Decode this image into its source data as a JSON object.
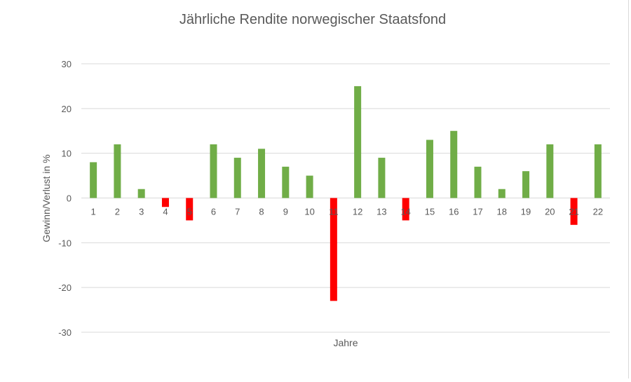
{
  "chart_data": {
    "type": "bar",
    "title": "Jährliche Rendite norwegischer Staatsfond",
    "xlabel": "Jahre",
    "ylabel": "Gewinn/Verlust in %",
    "categories": [
      "1",
      "2",
      "3",
      "4",
      "5",
      "6",
      "7",
      "8",
      "9",
      "10",
      "11",
      "12",
      "13",
      "14",
      "15",
      "16",
      "17",
      "18",
      "19",
      "20",
      "21",
      "22"
    ],
    "values": [
      8,
      12,
      2,
      -2,
      -5,
      12,
      9,
      11,
      7,
      5,
      -23,
      25,
      9,
      -5,
      13,
      15,
      7,
      2,
      6,
      12,
      -6,
      12
    ],
    "ylim": [
      -30,
      30
    ],
    "yticks": [
      30,
      20,
      10,
      0,
      -10,
      -20,
      -30
    ],
    "grid": true,
    "legend": "none",
    "colors": {
      "positive": "#70ad47",
      "negative": "#ff0000",
      "grid": "#d9d9d9",
      "text": "#595959"
    }
  }
}
